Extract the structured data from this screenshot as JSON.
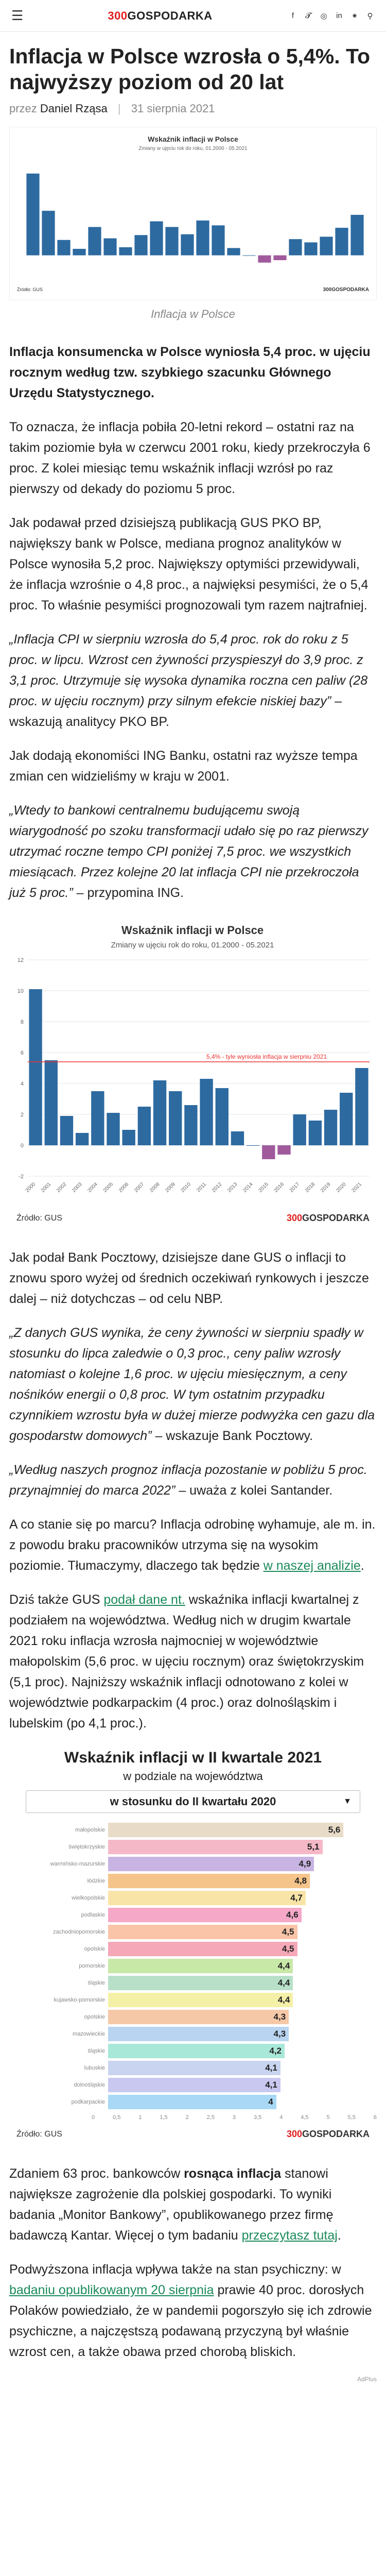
{
  "site": {
    "logo_prefix": "300",
    "logo_main": "GOSPODARKA"
  },
  "social_icons": [
    "facebook-icon",
    "twitter-icon",
    "instagram-icon",
    "linkedin-icon",
    "rss-icon",
    "search-icon"
  ],
  "article": {
    "title": "Inflacja w Polsce wzrosła o 5,4%. To najwyższy poziom od 20 lat",
    "by": "przez",
    "author": "Daniel Rząsa",
    "date": "31 sierpnia 2021",
    "hero_caption": "Inflacja w Polsce",
    "lead": "Inflacja konsumencka w Polsce wyniosła 5,4 proc. w ujęciu rocznym według tzw. szybkiego szacunku Głównego Urzędu Statystycznego.",
    "p1": "To oznacza, że inflacja pobiła 20-letni rekord – ostatni raz na takim poziomie była w czerwcu 2001 roku, kiedy przekroczyła 6 proc. Z kolei miesiąc temu wskaźnik inflacji wzrósł po raz pierwszy od dekady do poziomu 5 proc.",
    "p2": "Jak podawał przed dzisiejszą publikacją GUS PKO BP, największy bank w Polsce, mediana prognoz analityków w Polsce wynosiła 5,2 proc. Największy optymiści przewidywali, że inflacja wzrośnie o 4,8 proc., a najwięksi pesymiści, że o 5,4 proc. To właśnie pesymiści prognozowali tym razem najtrafniej.",
    "q1": "„Inflacja CPI w sierpniu wzrosła do 5,4 proc. rok do roku z 5 proc. w lipcu. Wzrost cen żywności przyspieszył do 3,9 proc. z 3,1 proc. Utrzymuje się wysoka dynamika roczna cen paliw (28 proc. w ujęciu rocznym) przy silnym efekcie niskiej bazy”",
    "q1_tail": " – wskazują analitycy PKO BP.",
    "p3": "Jak dodają ekonomiści ING Banku, ostatni raz wyższe tempa zmian cen widzieliśmy w kraju w 2001.",
    "q2": "„Wtedy to bankowi centralnemu budującemu swoją wiarygodność po szoku transformacji udało się po raz pierwszy utrzymać roczne tempo CPI poniżej 7,5 proc. we wszystkich miesiącach. Przez kolejne 20 lat inflacja CPI nie przekroczoła już 5 proc.”",
    "q2_tail": " – przypomina ING.",
    "p4": "Jak podał Bank Pocztowy, dzisiejsze dane GUS o inflacji to znowu sporo wyżej od średnich oczekiwań rynkowych i jeszcze dalej – niż dotychczas – od celu NBP.",
    "q3": "„Z danych GUS wynika, że ceny żywności w sierpniu spadły w stosunku do lipca zaledwie o 0,3 proc., ceny paliw wzrosły natomiast o kolejne 1,6 proc. w ujęciu miesięcznym, a ceny nośników energii o 0,8 proc. W tym ostatnim przypadku czynnikiem wzrostu była w dużej mierze podwyżka cen gazu dla gospodarstw domowych”",
    "q3_tail": " – wskazuje Bank Pocztowy.",
    "q4": "„Według naszych prognoz inflacja pozostanie w pobliżu 5 proc. przynajmniej do marca 2022”",
    "q4_tail": " – uważa z kolei Santander.",
    "p5_pre": "A co stanie się po marcu? Inflacja odrobinę wyhamuje, ale m. in. z powodu braku pracowników utrzyma się na wysokim poziomie. Tłumaczymy, dlaczego tak będzie ",
    "p5_link": "w naszej analizie",
    "p5_post": ".",
    "p6_pre": "Dziś także GUS ",
    "p6_link": "podał dane nt.",
    "p6_post": " wskaźnika inflacji kwartalnej z podziałem na województwa. Według nich w drugim kwartale 2021 roku inflacja wzrosła najmocniej w województwie małopolskim (5,6 proc. w ujęciu rocznym) oraz świętokrzyskim (5,1 proc). Najniższy wskaźnik inflacji odnotowano z kolei w województwie podkarpackim (4 proc.) oraz dolnośląskim i lubelskim (po 4,1 proc.).",
    "p7_pre": "Zdaniem 63 proc. bankowców ",
    "p7_bold": "rosnąca inflacja",
    "p7_mid": " stanowi największe zagrożenie dla polskiej gospodarki. To wyniki badania „Monitor Bankowy”, opublikowanego przez firmę badawczą Kantar. Więcej o tym badaniu ",
    "p7_link": "przeczytasz tutaj",
    "p7_post": ".",
    "p8_pre": "Podwyższona inflacja wpływa także na stan psychiczny: w ",
    "p8_link": "badaniu opublikowanym 20 sierpnia",
    "p8_post": " prawie 40 proc. dorosłych Polaków powiedziało, że w pandemii pogorszyło się ich zdrowie psychiczne, a najczęstszą podawaną przyczyną był właśnie wzrost cen, a także obawa przed chorobą bliskich."
  },
  "inflation_chart": {
    "title": "Wskaźnik inflacji w Polsce",
    "subtitle": "Zmiany w ujęciu rok do roku, 01.2000 - 05.2021",
    "annotation": "5,4% - tyle wyniosła inflacja w sierpniu 2021",
    "source": "Źródło: GUS",
    "accent": "#2d6aa0",
    "deflation": "#a05a9c",
    "ref_line": "#e33"
  },
  "chart_data": [
    {
      "type": "bar",
      "title": "Wskaźnik inflacji w Polsce",
      "subtitle": "Zmiany w ujęciu rok do roku, 01.2000 - 05.2021",
      "ylim": [
        -2,
        12
      ],
      "yticks": [
        -2,
        0,
        2,
        4,
        6,
        8,
        10,
        12
      ],
      "xlabel": "",
      "ylabel": "",
      "reference_line": 5.4,
      "x": [
        "2000",
        "2001",
        "2002",
        "2003",
        "2004",
        "2005",
        "2006",
        "2007",
        "2008",
        "2009",
        "2010",
        "2011",
        "2012",
        "2013",
        "2014",
        "2015",
        "2016",
        "2017",
        "2018",
        "2019",
        "2020",
        "2021"
      ],
      "values": [
        10.1,
        5.5,
        1.9,
        0.8,
        3.5,
        2.1,
        1.0,
        2.5,
        4.2,
        3.5,
        2.6,
        4.3,
        3.7,
        0.9,
        0.0,
        -0.9,
        -0.6,
        2.0,
        1.6,
        2.3,
        3.4,
        5.0
      ]
    },
    {
      "type": "bar",
      "title": "Wskaźnik inflacji w II kwartale 2021",
      "subtitle": "w podziale na województwa",
      "selector": "w stosunku do II kwartału 2020",
      "xlim": [
        0,
        6
      ],
      "xticks": [
        "0",
        "0,5",
        "1",
        "1,5",
        "2",
        "2,5",
        "3",
        "3,5",
        "4",
        "4,5",
        "5",
        "5,5",
        "6"
      ],
      "categories": [
        "małopolskie",
        "świętokrzyskie",
        "warmińsko-mazurskie",
        "łódzkie",
        "wielkopolskie",
        "podlaskie",
        "zachodniopomorskie",
        "opolskie",
        "pomorskie",
        "śląskie",
        "kujawsko-pomorskie",
        "opolskie",
        "mazowieckie",
        "śląskie",
        "lubuskie",
        "dolnośląskie",
        "podkarpackie"
      ],
      "values": [
        5.6,
        5.1,
        4.9,
        4.8,
        4.7,
        4.6,
        4.5,
        4.5,
        4.4,
        4.4,
        4.4,
        4.3,
        4.3,
        4.2,
        4.1,
        4.1,
        4.0
      ],
      "labels": [
        "5,6",
        "5,1",
        "4,9",
        "4,8",
        "4,7",
        "4,6",
        "4,5",
        "4,5",
        "4,4",
        "4,4",
        "4,4",
        "4,3",
        "4,3",
        "4,2",
        "4,1",
        "4,1",
        "4"
      ],
      "colors": [
        "#e8dcc8",
        "#f5b8c6",
        "#c8b4e2",
        "#f5c48a",
        "#f9e4a8",
        "#f5a8c8",
        "#f9c4a8",
        "#f5a8b8",
        "#c8e8a8",
        "#b8e0c8",
        "#f5f0a8",
        "#f5c8a8",
        "#b8d4f0",
        "#a8e8d8",
        "#c8d4f0",
        "#c8c8f0",
        "#a8d8f5"
      ]
    }
  ],
  "region_chart": {
    "title": "Wskaźnik inflacji w II kwartale 2021",
    "subtitle": "w podziale na województwa",
    "selected": "w stosunku do II kwartału 2020",
    "source": "Źródło: GUS"
  },
  "ad_badge": "AdPlus"
}
